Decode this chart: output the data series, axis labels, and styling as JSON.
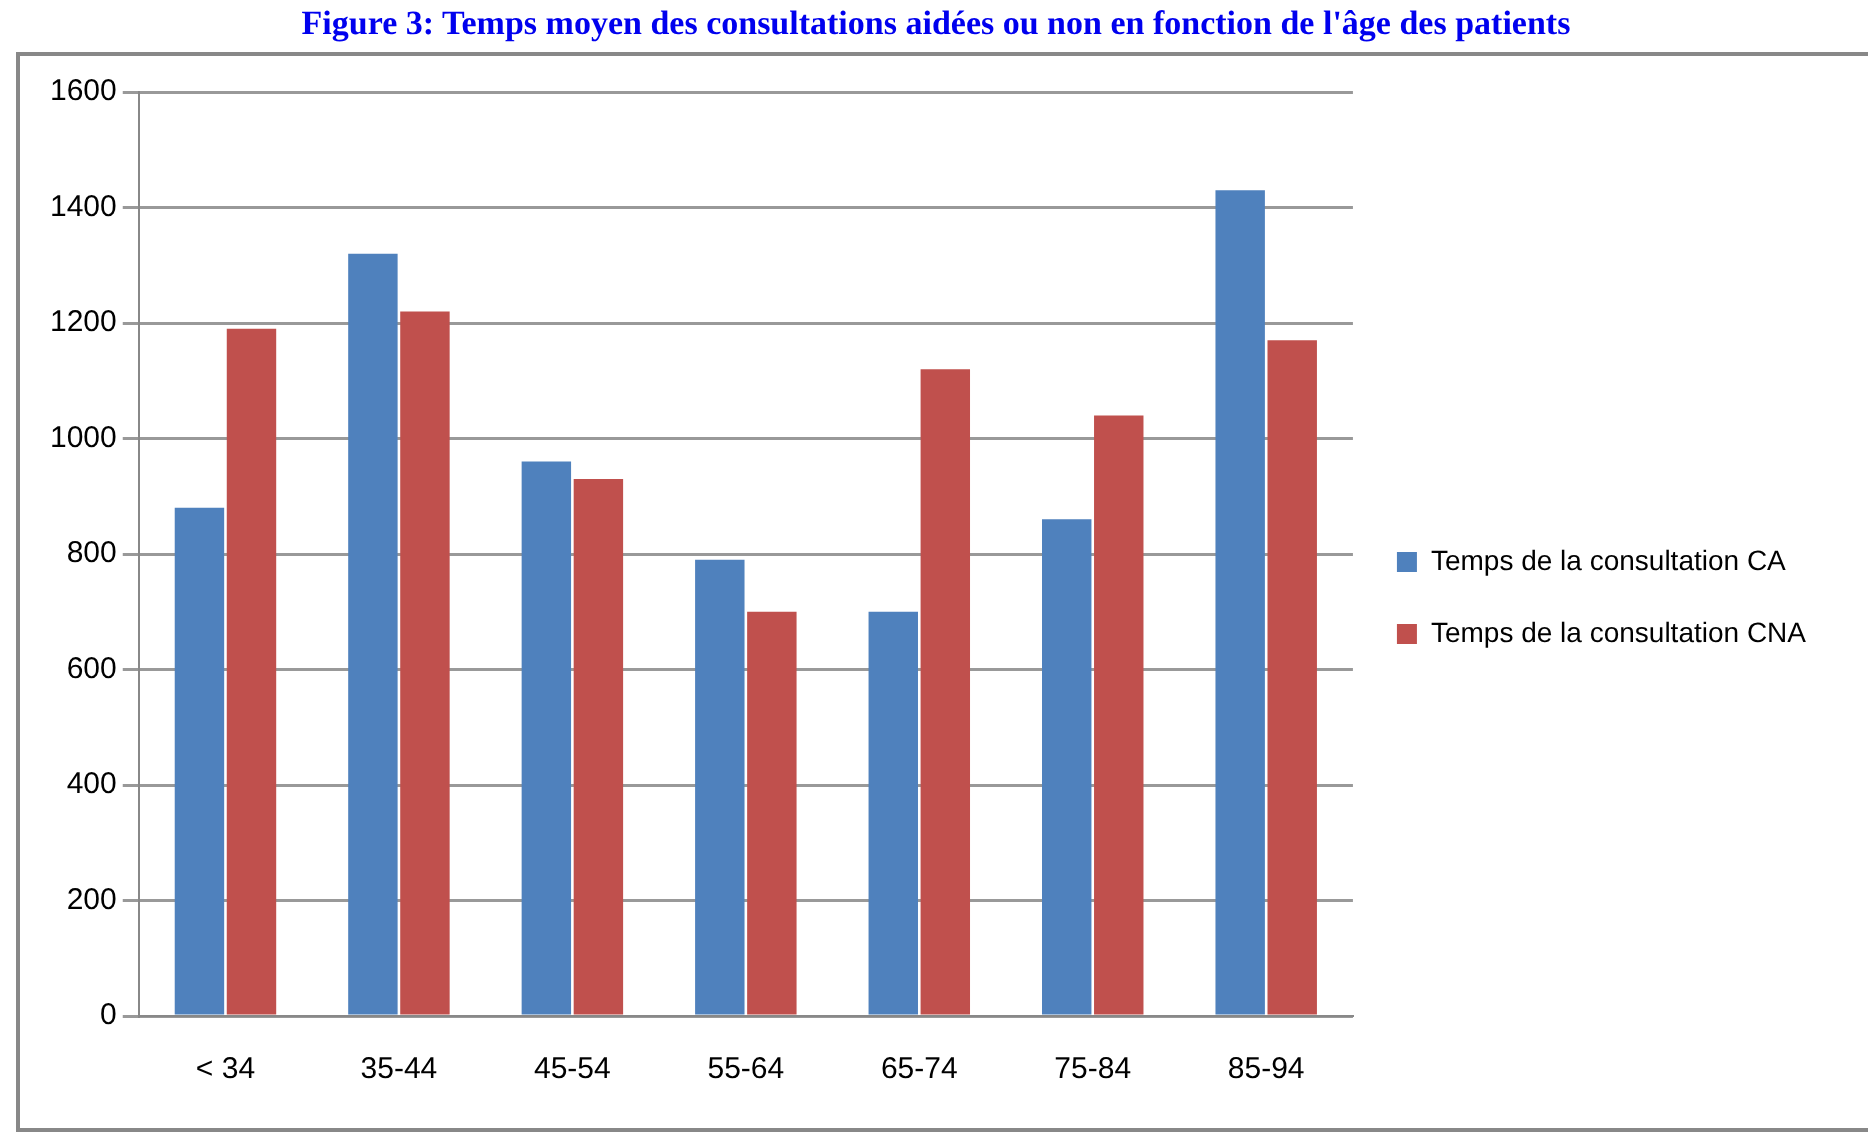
{
  "chart_data": {
    "type": "bar",
    "title": "Figure 3: Temps moyen des consultations aidées ou non en fonction de l'âge des patients",
    "categories": [
      "< 34",
      "35-44",
      "45-54",
      "55-64",
      "65-74",
      "75-84",
      "85-94"
    ],
    "series": [
      {
        "name": "Temps de la consultation CA",
        "color": "#4f81bd",
        "values": [
          880,
          1320,
          960,
          790,
          700,
          860,
          1430
        ]
      },
      {
        "name": "Temps de la consultation CNA",
        "color": "#c0504d",
        "values": [
          1190,
          1220,
          930,
          700,
          1120,
          1040,
          1170
        ]
      }
    ],
    "ylim": [
      0,
      1600
    ],
    "yticks": [
      0,
      200,
      400,
      600,
      800,
      1000,
      1200,
      1400,
      1600
    ],
    "grid": "y",
    "legend": "right"
  }
}
